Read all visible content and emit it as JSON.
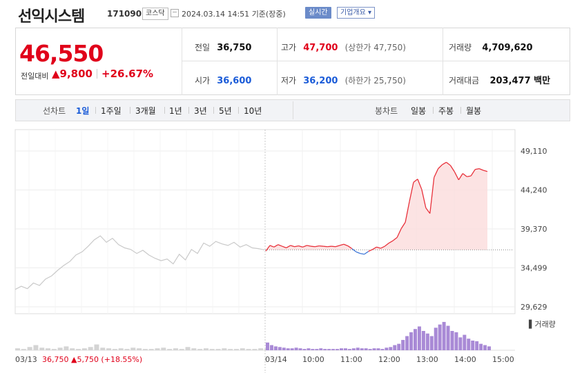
{
  "header": {
    "name": "선익시스템",
    "code": "171090",
    "market": "코스닥",
    "timestamp": "2024.03.14 14:51",
    "basis": "기준(장중)",
    "realtime_label": "실시간",
    "corp_info_label": "기업개요 ▾"
  },
  "summary": {
    "price": "46,550",
    "change_label": "전일대비",
    "change_value": "▲9,800",
    "change_pct": "+26.67%",
    "prev_close_label": "전일",
    "prev_close": "36,750",
    "open_label": "시가",
    "open": "36,600",
    "high_label": "고가",
    "high": "47,700",
    "upper_limit": "(상한가 47,750)",
    "low_label": "저가",
    "low": "36,200",
    "lower_limit": "(하한가 25,750)",
    "volume_label": "거래량",
    "volume": "4,709,620",
    "amount_label": "거래대금",
    "amount": "203,477 백만"
  },
  "periods": {
    "line_chart_label": "선차트",
    "items": [
      "1일",
      "1주일",
      "3개월",
      "1년",
      "3년",
      "5년",
      "10년"
    ],
    "selected": "1일",
    "candle_label": "봉차트",
    "candle_items": [
      "일봉",
      "주봉",
      "월봉"
    ]
  },
  "chart_data": {
    "type": "line",
    "y_ticks": [
      "49,110",
      "44,240",
      "39,370",
      "34,499",
      "29,629"
    ],
    "ylim": [
      29629,
      49110
    ],
    "x_ticks": [
      "03/13",
      "03/14",
      "10:00",
      "11:00",
      "12:00",
      "13:00",
      "14:00",
      "15:00"
    ],
    "reference_value": 36750,
    "volume_legend": "거래량",
    "prev_day_summary": {
      "date": "03/13",
      "close": "36,750",
      "change": "▲5,750",
      "pct": "(+18.55%)"
    },
    "series": [
      {
        "period": "03/13",
        "values": [
          31800,
          32200,
          31900,
          32600,
          32300,
          33100,
          33500,
          34200,
          34800,
          35300,
          36100,
          36500,
          37200,
          38000,
          38500,
          37700,
          38200,
          37400,
          37000,
          36800,
          36300,
          36700,
          36100,
          35700,
          35400,
          35600,
          35000,
          36200,
          35500,
          36800,
          36300,
          37600,
          37200,
          37800,
          37500,
          37300,
          37700,
          37100,
          37400,
          37000,
          36900,
          36750
        ]
      },
      {
        "period": "03/14",
        "values": [
          36600,
          37300,
          37100,
          37400,
          37200,
          37000,
          37300,
          37150,
          37250,
          37100,
          37300,
          37200,
          37150,
          37250,
          37200,
          37150,
          37200,
          37150,
          37300,
          37450,
          37250,
          36900,
          36500,
          36300,
          36200,
          36550,
          36800,
          37100,
          36950,
          37200,
          37600,
          37900,
          38300,
          39400,
          40200,
          42800,
          45200,
          45600,
          44300,
          42000,
          41300,
          45800,
          46900,
          47400,
          47700,
          47300,
          46500,
          45500,
          46300,
          45900,
          46000,
          46800,
          46900,
          46700,
          46550
        ]
      }
    ],
    "volume": {
      "prev_day": [
        3,
        2,
        5,
        8,
        4,
        3,
        2,
        4,
        6,
        3,
        2,
        3,
        5,
        9,
        4,
        3,
        2,
        3,
        2,
        4,
        3,
        2,
        2,
        3,
        4,
        2,
        3,
        2,
        5,
        3,
        2,
        3,
        2,
        2,
        3,
        2,
        2,
        3,
        2,
        2,
        3,
        2
      ],
      "today": [
        12,
        8,
        6,
        5,
        4,
        3,
        3,
        4,
        3,
        2,
        3,
        2,
        2,
        3,
        2,
        2,
        2,
        2,
        3,
        3,
        2,
        3,
        4,
        3,
        3,
        2,
        3,
        3,
        2,
        4,
        5,
        8,
        10,
        16,
        22,
        28,
        33,
        37,
        30,
        26,
        22,
        35,
        40,
        44,
        38,
        30,
        28,
        20,
        24,
        18,
        15,
        14,
        10,
        8,
        6
      ]
    }
  }
}
